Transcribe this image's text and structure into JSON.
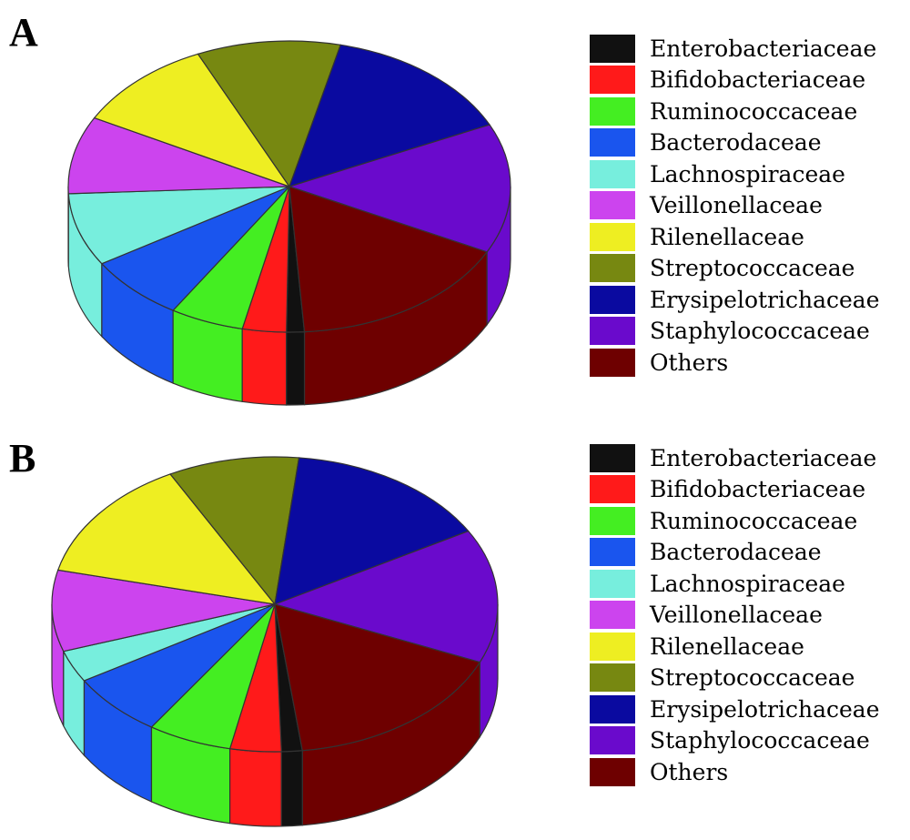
{
  "chart_data": [
    {
      "type": "pie",
      "panel_label": "A",
      "legend_placement": "right",
      "legend": [
        "Enterobacteriaceae",
        "Bifidobacteriaceae",
        "Ruminococcaceae",
        "Bacterodaceae",
        "Lachnospiraceae",
        "Veillonellaceae",
        "Rilenellaceae",
        "Streptococcaceae",
        "Erysipelotrichaceae",
        "Staphylococcaceae",
        "Others"
      ],
      "colors": [
        "#111111",
        "#ff1a1a",
        "#44ee22",
        "#1a55ee",
        "#77eedd",
        "#cc44ee",
        "#eeee22",
        "#778811",
        "#0a0aa0",
        "#6a0acc",
        "#6e0000"
      ],
      "values": [
        1.3,
        3.2,
        5.4,
        7.3,
        8.1,
        8.6,
        10.4,
        10.5,
        14.3,
        14.4,
        16.5
      ]
    },
    {
      "type": "pie",
      "panel_label": "B",
      "legend_placement": "right",
      "legend": [
        "Enterobacteriaceae",
        "Bifidobacteriaceae",
        "Ruminococcaceae",
        "Bacterodaceae",
        "Lachnospiraceae",
        "Veillonellaceae",
        "Rilenellaceae",
        "Streptococcaceae",
        "Erysipelotrichaceae",
        "Staphylococcaceae",
        "Others"
      ],
      "colors": [
        "#111111",
        "#ff1a1a",
        "#44ee22",
        "#1a55ee",
        "#77eedd",
        "#cc44ee",
        "#eeee22",
        "#778811",
        "#0a0aa0",
        "#6a0acc",
        "#6e0000"
      ],
      "values": [
        1.5,
        3.7,
        6.1,
        7.0,
        3.5,
        8.9,
        13.5,
        9.5,
        15.0,
        14.7,
        16.6
      ]
    }
  ]
}
